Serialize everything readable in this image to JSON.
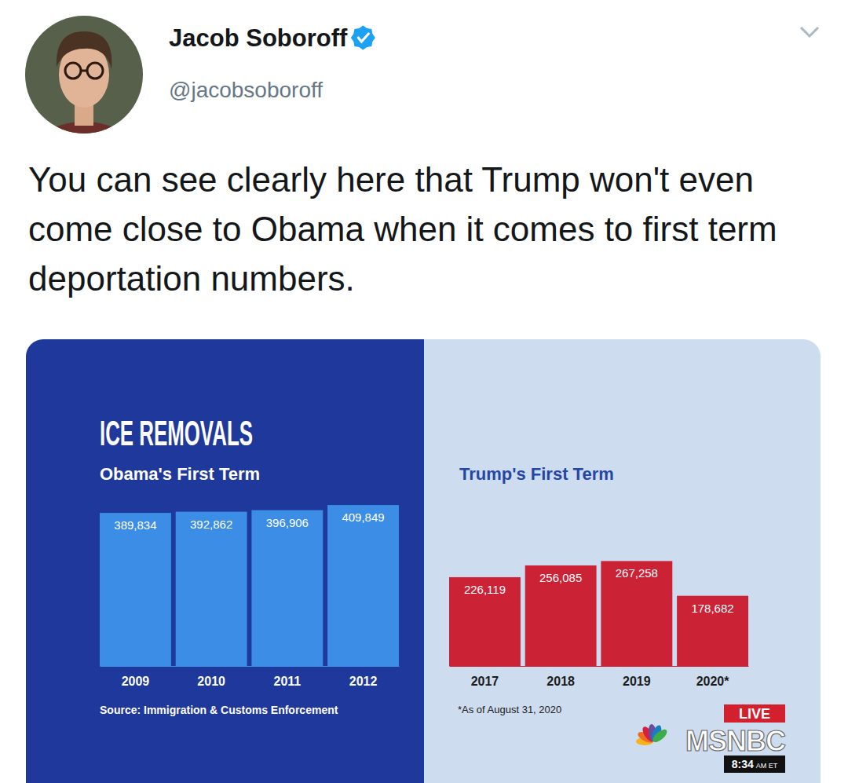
{
  "tweet": {
    "name": "Jacob Soboroff",
    "handle": "@jacobsoboroff",
    "text": "You can see clearly here that Trump won't even come close to Obama when it comes to first term deportation numbers."
  },
  "chart_data": [
    {
      "type": "bar",
      "title": "ICE REMOVALS",
      "subtitle": "Obama's First Term",
      "categories": [
        "2009",
        "2010",
        "2011",
        "2012"
      ],
      "values": [
        389834,
        392862,
        396906,
        409849
      ],
      "value_labels": [
        "389,834",
        "392,862",
        "396,906",
        "409,849"
      ],
      "color": "#3b8de6",
      "ylim": [
        0,
        420000
      ],
      "data_labels": true,
      "tick_labels": "x",
      "source": "Source: Immigration & Customs Enforcement"
    },
    {
      "type": "bar",
      "subtitle": "Trump's First Term",
      "categories": [
        "2017",
        "2018",
        "2019",
        "2020*"
      ],
      "values": [
        226119,
        256085,
        267258,
        178682
      ],
      "value_labels": [
        "226,119",
        "256,085",
        "267,258",
        "178,682"
      ],
      "color": "#cc2236",
      "ylim": [
        0,
        420000
      ],
      "data_labels": true,
      "tick_labels": "x",
      "note": "*As of August 31, 2020"
    }
  ],
  "broadcast": {
    "live": "LIVE",
    "network": "MSNBC",
    "time": "8:34",
    "zone": "AM ET"
  }
}
